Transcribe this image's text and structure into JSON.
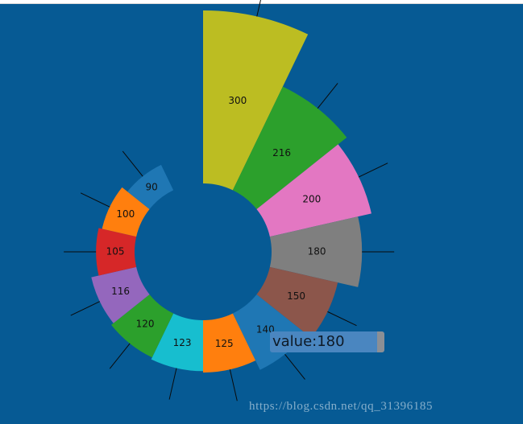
{
  "chart_data": {
    "type": "pie",
    "subtype": "rose-donut",
    "categories": [
      "300",
      "216",
      "200",
      "180",
      "150",
      "140",
      "125",
      "123",
      "120",
      "116",
      "105",
      "100",
      "90"
    ],
    "values": [
      300,
      216,
      200,
      180,
      150,
      140,
      125,
      123,
      120,
      116,
      105,
      100,
      90
    ],
    "data_labels": [
      "300",
      "216",
      "200",
      "180",
      "150",
      "140",
      "125",
      "123",
      "120",
      "116",
      "105",
      "100",
      "90"
    ],
    "colors": [
      "#bcbd22",
      "#2ca02c",
      "#e377c2",
      "#7f7f7f",
      "#8c564b",
      "#1f77b4",
      "#ff7f0e",
      "#17becf",
      "#2ca02c",
      "#9467bd",
      "#d62728",
      "#ff7f0e",
      "#1f77b4"
    ],
    "title": "",
    "background": "#065a94",
    "tooltip": {
      "text": "value:180"
    }
  },
  "watermark": "https://blog.csdn.net/qq_31396185"
}
